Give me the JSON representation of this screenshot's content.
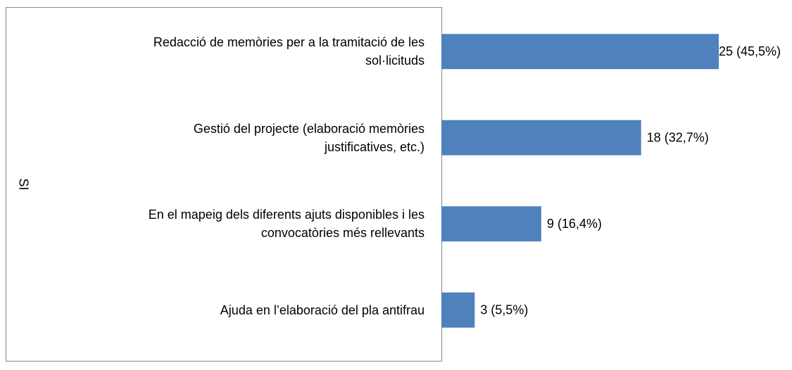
{
  "chart_data": {
    "type": "bar",
    "orientation": "horizontal",
    "y_label": "SI",
    "categories": [
      "Redacció de memòries per a la tramitació de les\nsol·licituds",
      "Gestió del projecte (elaboració memòries\njustificatives, etc.)",
      "En el mapeig dels diferents ajuts disponibles i les\nconvocatòries més rellevants",
      "Ajuda en l’elaboració del pla antifrau"
    ],
    "values": [
      25,
      18,
      9,
      3
    ],
    "value_labels": [
      "25 (45,5%)",
      "18 (32,7%)",
      "9 (16,4%)",
      "3 (5,5%)"
    ],
    "color": "#4f81bd",
    "xlim": [
      0,
      25
    ]
  }
}
